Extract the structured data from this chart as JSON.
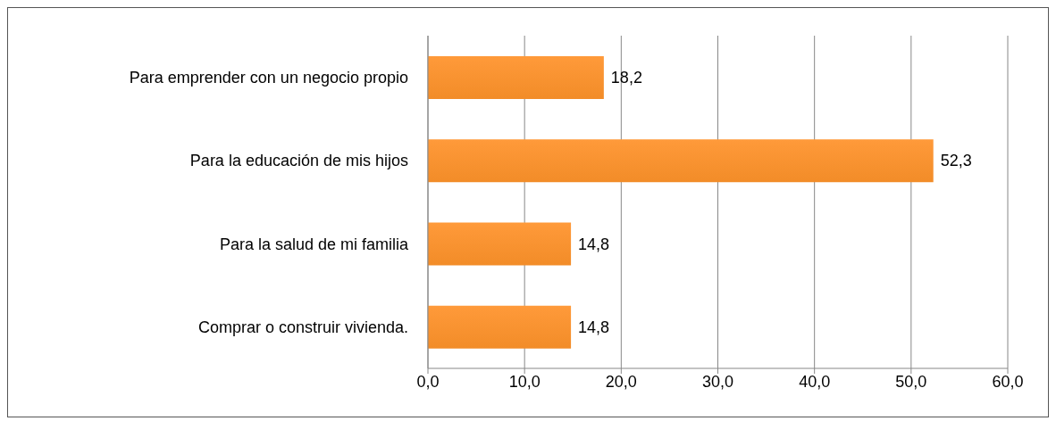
{
  "chart_data": {
    "type": "bar",
    "orientation": "horizontal",
    "categories": [
      "Para emprender con un negocio propio",
      "Para la educación de mis hijos",
      "Para la salud de mi familia",
      "Comprar o construir vivienda."
    ],
    "values": [
      18.2,
      52.3,
      14.8,
      14.8
    ],
    "value_labels": [
      "18,2",
      "52,3",
      "14,8",
      "14,8"
    ],
    "color": "#f28c28",
    "xlim": [
      0,
      60
    ],
    "xticks": [
      {
        "value": 0,
        "label": "0,0"
      },
      {
        "value": 10,
        "label": "10,0"
      },
      {
        "value": 20,
        "label": "20,0"
      },
      {
        "value": 30,
        "label": "30,0"
      },
      {
        "value": 40,
        "label": "40,0"
      },
      {
        "value": 50,
        "label": "50,0"
      },
      {
        "value": 60,
        "label": "60,0"
      }
    ],
    "grid": "x"
  }
}
